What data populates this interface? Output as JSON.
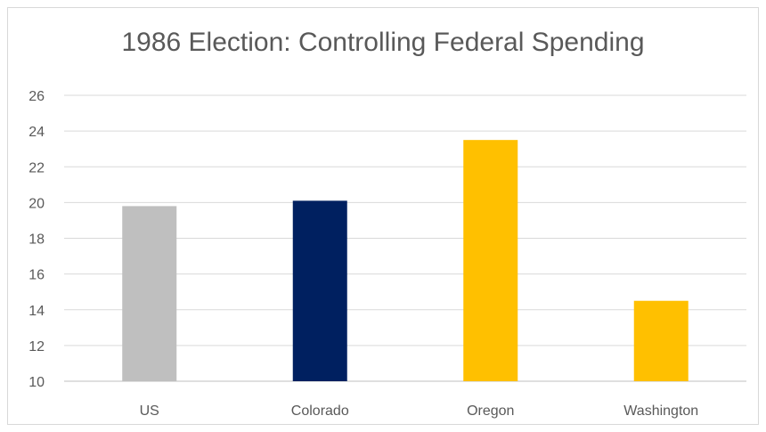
{
  "chart_data": {
    "type": "bar",
    "title": "1986 Election: Controlling Federal Spending",
    "xlabel": "",
    "ylabel": "",
    "categories": [
      "US",
      "Colorado",
      "Oregon",
      "Washington"
    ],
    "values": [
      19.8,
      20.1,
      23.5,
      14.5
    ],
    "bar_colors": [
      "#BFBFBF",
      "#002060",
      "#FFC000",
      "#FFC000"
    ],
    "ylim": [
      10,
      26
    ],
    "yticks": [
      10,
      12,
      14,
      16,
      18,
      20,
      22,
      24,
      26
    ],
    "grid": true,
    "legend": "none"
  }
}
